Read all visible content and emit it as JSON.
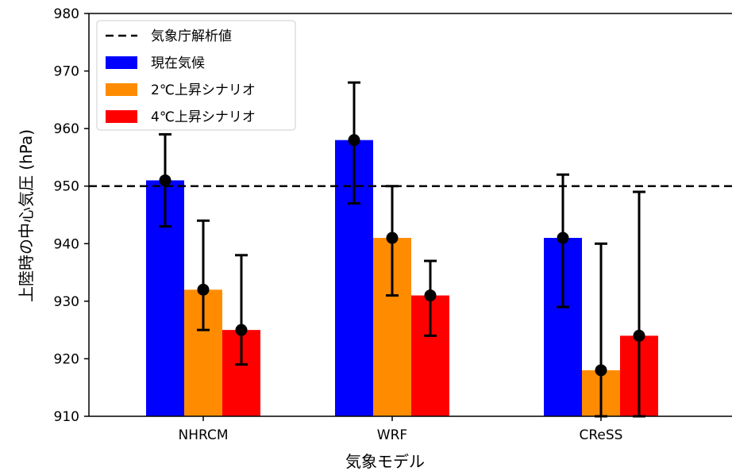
{
  "chart_data": {
    "type": "bar",
    "categories": [
      "NHRCM",
      "WRF",
      "CReSS"
    ],
    "series": [
      {
        "name": "現在気候",
        "color": "#0000ff",
        "values": [
          951,
          958,
          941
        ],
        "error_low": [
          943,
          947,
          929
        ],
        "error_high": [
          959,
          968,
          952
        ]
      },
      {
        "name": "2℃上昇シナリオ",
        "color": "#ff8c00",
        "values": [
          932,
          941,
          918
        ],
        "error_low": [
          925,
          931,
          910
        ],
        "error_high": [
          944,
          950,
          940
        ]
      },
      {
        "name": "4℃上昇シナリオ",
        "color": "#ff0000",
        "values": [
          925,
          931,
          924
        ],
        "error_low": [
          919,
          924,
          910
        ],
        "error_high": [
          938,
          937,
          949
        ]
      }
    ],
    "reference_line": {
      "name": "気象庁解析値",
      "value": 950,
      "style": "dashed",
      "color": "#000000"
    },
    "xlabel": "気象モデル",
    "ylabel": "上陸時の中心気圧 (hPa)",
    "ylim": [
      910,
      980
    ],
    "yticks": [
      910,
      920,
      930,
      940,
      950,
      960,
      970,
      980
    ],
    "legend_position": "top-left",
    "grid": false
  }
}
